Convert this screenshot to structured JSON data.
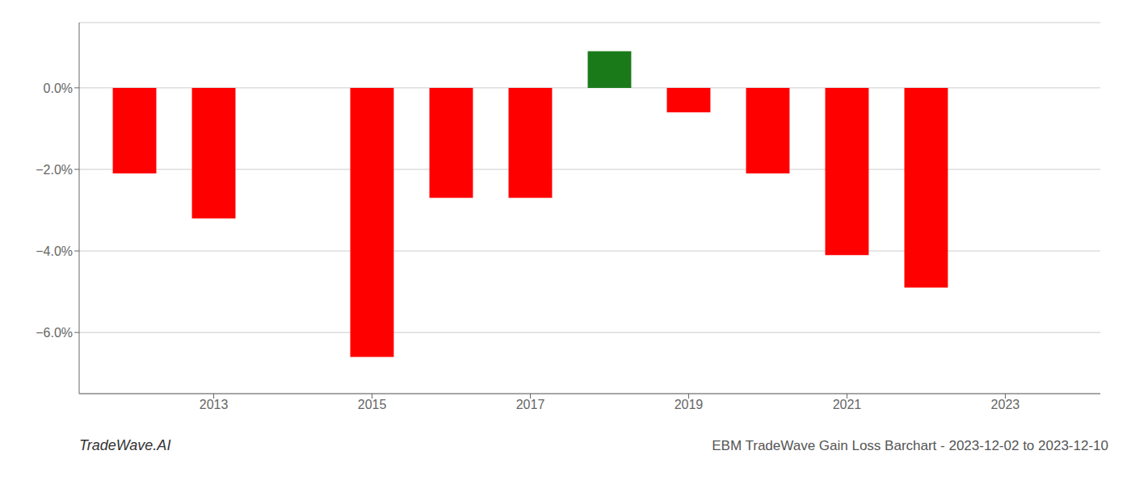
{
  "chart_data": {
    "type": "bar",
    "x": [
      2012,
      2013,
      2015,
      2016,
      2017,
      2018,
      2019,
      2020,
      2021,
      2022
    ],
    "values": [
      -2.1,
      -3.2,
      -6.6,
      -2.7,
      -2.7,
      0.9,
      -0.6,
      -2.1,
      -4.1,
      -4.9
    ],
    "colors": [
      "#ff0000",
      "#ff0000",
      "#ff0000",
      "#ff0000",
      "#ff0000",
      "#1a7a1a",
      "#ff0000",
      "#ff0000",
      "#ff0000",
      "#ff0000"
    ],
    "xlim": [
      2011.3,
      2024.2
    ],
    "xticks": [
      2013,
      2015,
      2017,
      2019,
      2021,
      2023
    ],
    "ylim": [
      -7.5,
      1.6
    ],
    "yticks": [
      {
        "value": 0,
        "label": "0.0%"
      },
      {
        "value": -2,
        "label": "−2.0%"
      },
      {
        "value": -4,
        "label": "−4.0%"
      },
      {
        "value": -6,
        "label": "−6.0%"
      }
    ],
    "grid": true,
    "annotations": [
      "TradeWave.AI",
      "EBM TradeWave Gain Loss Barchart - 2023-12-02 to 2023-12-10"
    ]
  }
}
